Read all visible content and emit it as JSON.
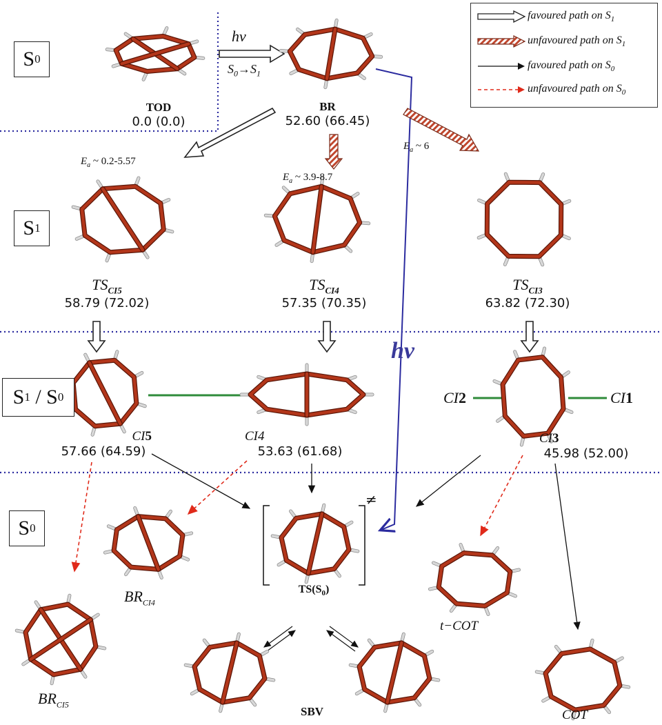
{
  "legend": {
    "items": [
      {
        "label": "favoured path on S",
        "sub": "1",
        "style": "white-hollow"
      },
      {
        "label": "unfavoured path on S",
        "sub": "1",
        "style": "striped-hollow"
      },
      {
        "label": "favoured path on S",
        "sub": "0",
        "style": "black-solid"
      },
      {
        "label": "unfavoured path on S",
        "sub": "0",
        "style": "red-dashed"
      }
    ]
  },
  "states": {
    "s0_top": {
      "main": "S",
      "sub": "0"
    },
    "s1": {
      "main": "S",
      "sub": "1"
    },
    "s1s0": {
      "main": "S",
      "sub": "1",
      "sep": " / ",
      "main2": "S",
      "sub2": "0"
    },
    "s0_bottom": {
      "main": "S",
      "sub": "0"
    }
  },
  "excitation": {
    "hv": "hv",
    "transition_main": "S",
    "transition_from": "0",
    "arrow": "→",
    "transition_to_main": "S",
    "transition_to": "1"
  },
  "hv_big": "hv",
  "molecules": {
    "tod": {
      "name": "TOD",
      "energy": "0.0 (0.0)"
    },
    "br": {
      "name": "BR",
      "energy": "52.60 (66.45)"
    },
    "ts_ci5": {
      "name": "TS",
      "sub": "CI5",
      "energy": "58.79 (72.02)"
    },
    "ts_ci4": {
      "name": "TS",
      "sub": "CI4",
      "energy": "57.35 (70.35)"
    },
    "ts_ci3": {
      "name": "TS",
      "sub": "CI3",
      "energy": "63.82 (72.30)"
    },
    "ci5": {
      "name": "CI",
      "num": "5",
      "energy": "57.66 (64.59)"
    },
    "ci4": {
      "name": "CI4",
      "energy": "53.63 (61.68)"
    },
    "ci3": {
      "name": "CI",
      "num": "3",
      "energy": "45.98 (52.00)"
    },
    "ci2": {
      "name": "CI",
      "num": "2"
    },
    "ci1": {
      "name": "CI",
      "num": "1"
    },
    "ts_s0": {
      "name": "TS(S",
      "sub": "0",
      "close": ")",
      "ddagger": "≠"
    },
    "br_ci4": {
      "name": "BR",
      "sub": "CI4"
    },
    "br_ci5": {
      "name": "BR",
      "sub": "CI5"
    },
    "t_cot": {
      "name": "t−COT"
    },
    "sbv": {
      "name": "SBV"
    },
    "cot": {
      "name": "COT"
    }
  },
  "barriers": {
    "ts_ci5": {
      "label": "E",
      "sub": "a",
      "value": " ~ 0.2-5.57"
    },
    "ts_ci4": {
      "label": "E",
      "sub": "a",
      "value": " ~ 3.9-8.7"
    },
    "ts_ci3": {
      "label": "E",
      "sub": "a",
      "value": " ~ 6"
    }
  },
  "colors": {
    "divider": "#2b2b9f",
    "carbon_bond": "#b3361a",
    "hydrogen": "#d8d8d8",
    "ci_link": "#2e8b3a",
    "red_arrow": "#e02a1a",
    "blue_path": "#2b2b9f"
  }
}
